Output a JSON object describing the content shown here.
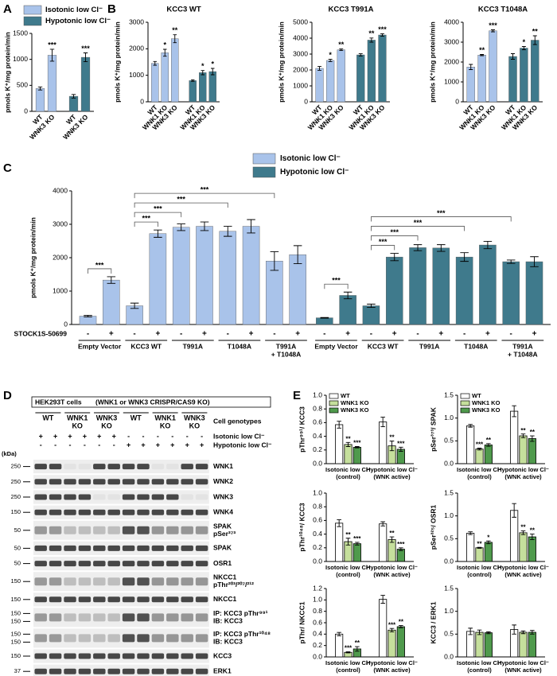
{
  "chart_data": [
    {
      "type": "bar",
      "panel": "A",
      "y_label": "pmols K⁺/mg protein/min",
      "categories": [
        "WT",
        "WNK3 KO"
      ],
      "groups": [
        {
          "name": "Isotonic low Cl⁻",
          "color": "#a9c3ea",
          "values": [
            440,
            1080
          ],
          "errors": [
            30,
            115
          ],
          "stars": [
            null,
            "***"
          ]
        },
        {
          "name": "Hypotonic low Cl⁻",
          "color": "#3f7a8c",
          "values": [
            290,
            1040
          ],
          "errors": [
            35,
            85
          ],
          "stars": [
            null,
            "***"
          ]
        }
      ],
      "ylim": [
        0,
        1500
      ],
      "yticks": [
        0,
        500,
        1000,
        1500
      ],
      "legend": true
    },
    {
      "type": "bar",
      "panel": "B",
      "title": "KCC3 WT",
      "y_label": "pmols K⁺/mg protein/min",
      "categories": [
        "WT",
        "WNK1 KO",
        "WNK3 KO"
      ],
      "groups": [
        {
          "color": "#a9c3ea",
          "values": [
            1450,
            1850,
            2380
          ],
          "errors": [
            70,
            130,
            150
          ],
          "stars": [
            null,
            "*",
            "**"
          ]
        },
        {
          "color": "#3f7a8c",
          "values": [
            800,
            1100,
            1140
          ],
          "errors": [
            30,
            80,
            120
          ],
          "stars": [
            null,
            "*",
            "*"
          ]
        }
      ],
      "ylim": [
        0,
        3000
      ],
      "yticks": [
        0,
        1000,
        2000,
        3000
      ]
    },
    {
      "type": "bar",
      "title": "KCC3 T991A",
      "y_label": "pmols K⁺/mg protein/min",
      "categories": [
        "WT",
        "WNK1 KO",
        "WNK3 KO"
      ],
      "groups": [
        {
          "color": "#a9c3ea",
          "values": [
            2100,
            2600,
            3270
          ],
          "errors": [
            120,
            70,
            50
          ],
          "stars": [
            null,
            "*",
            "**"
          ]
        },
        {
          "color": "#3f7a8c",
          "values": [
            2950,
            3880,
            4200
          ],
          "errors": [
            70,
            130,
            80
          ],
          "stars": [
            null,
            "**",
            "***"
          ]
        }
      ],
      "ylim": [
        0,
        5000
      ],
      "yticks": [
        0,
        1000,
        2000,
        3000,
        4000,
        5000
      ]
    },
    {
      "type": "bar",
      "title": "KCC3 T1048A",
      "y_label": "pmols K⁺/mg protein/min",
      "categories": [
        "WT",
        "WNK1 KO",
        "WNK3 KO"
      ],
      "groups": [
        {
          "color": "#a9c3ea",
          "values": [
            1750,
            2350,
            3570
          ],
          "errors": [
            130,
            30,
            50
          ],
          "stars": [
            null,
            "**",
            "***"
          ]
        },
        {
          "color": "#3f7a8c",
          "values": [
            2280,
            2700,
            3100
          ],
          "errors": [
            140,
            80,
            220
          ],
          "stars": [
            null,
            "*",
            "**"
          ]
        }
      ],
      "ylim": [
        0,
        4000
      ],
      "yticks": [
        0,
        1000,
        2000,
        3000,
        4000
      ]
    },
    {
      "type": "bar",
      "panel": "C",
      "y_label": "pmols K⁺/mg protein/min",
      "x_label": "STOCK1S-50699",
      "categories": [
        "-",
        "+",
        "-",
        "+",
        "-",
        "+",
        "-",
        "+",
        "-",
        "+"
      ],
      "constructs": [
        [
          "Empty Vector"
        ],
        [
          "KCC3 WT"
        ],
        [
          "T991A"
        ],
        [
          "T1048A"
        ],
        [
          "T991A",
          "+ T1048A"
        ]
      ],
      "groups": [
        {
          "name": "Isotonic low Cl⁻",
          "color": "#a9c3ea",
          "values": [
            250,
            1330,
            560,
            2720,
            2910,
            2940,
            2790,
            2940,
            1900,
            2090
          ],
          "errors": [
            25,
            100,
            80,
            110,
            100,
            130,
            150,
            200,
            280,
            270
          ]
        },
        {
          "name": "Hypotonic low Cl⁻",
          "color": "#3f7a8c",
          "values": [
            200,
            870,
            560,
            2020,
            2300,
            2290,
            2020,
            2380,
            1880,
            1880
          ],
          "errors": [
            10,
            100,
            50,
            110,
            90,
            100,
            130,
            110,
            50,
            150
          ]
        }
      ],
      "brackets": [
        {
          "bars": [
            0,
            1
          ],
          "label": "***"
        },
        {
          "bars": [
            2,
            3
          ],
          "label": "***"
        },
        {
          "bars": [
            2,
            4
          ],
          "label": "***"
        },
        {
          "bars": [
            2,
            6
          ],
          "label": "***"
        },
        {
          "bars": [
            2,
            8
          ],
          "label": "***"
        },
        {
          "bars": [
            10,
            11
          ],
          "label": "***"
        },
        {
          "bars": [
            12,
            13
          ],
          "label": "***"
        },
        {
          "bars": [
            12,
            14
          ],
          "label": "***"
        },
        {
          "bars": [
            12,
            16
          ],
          "label": "***"
        },
        {
          "bars": [
            12,
            18
          ],
          "label": "***"
        }
      ],
      "ylim": [
        0,
        4000
      ],
      "yticks": [
        0,
        1000,
        2000,
        3000,
        4000
      ],
      "legend": true
    },
    {
      "type": "bar",
      "panel": "E",
      "y_label": "pThr⁹⁹¹/ KCC3",
      "categories": [
        "Isotonic low Cl⁻",
        "Hypotonic low Cl⁻"
      ],
      "sublabels": [
        "(control)",
        "(WNK active)"
      ],
      "series": [
        {
          "name": "WT",
          "color": "#ffffff",
          "values": [
            0.57,
            0.61
          ],
          "errors": [
            0.05,
            0.07
          ]
        },
        {
          "name": "WNK1 KO",
          "color": "#c5df9c",
          "values": [
            0.28,
            0.26
          ],
          "errors": [
            0.03,
            0.07
          ],
          "stars": [
            "**",
            "**"
          ]
        },
        {
          "name": "WNK3 KO",
          "color": "#4f9a4c",
          "values": [
            0.24,
            0.21
          ],
          "errors": [
            0.01,
            0.03
          ],
          "stars": [
            "***",
            "***"
          ]
        }
      ],
      "ylim": [
        0,
        1
      ],
      "yticks": [
        {
          "value": 0,
          "label": "0.0"
        },
        0.2,
        0.4,
        0.6,
        0.8,
        {
          "value": 1,
          "label": "1.0"
        }
      ],
      "legend": true
    },
    {
      "type": "bar",
      "y_label": "pSer³⁷³/ SPAK",
      "categories": [
        "Isotonic low Cl⁻",
        "Hypotonic low Cl⁻"
      ],
      "sublabels": [
        "(control)",
        "(WNK active)"
      ],
      "series": [
        {
          "name": "WT",
          "color": "#ffffff",
          "values": [
            0.83,
            1.15
          ],
          "errors": [
            0.03,
            0.12
          ]
        },
        {
          "name": "WNK1 KO",
          "color": "#c5df9c",
          "values": [
            0.32,
            0.61
          ],
          "errors": [
            0.02,
            0.04
          ],
          "stars": [
            "***",
            "**"
          ]
        },
        {
          "name": "WNK3 KO",
          "color": "#4f9a4c",
          "values": [
            0.41,
            0.55
          ],
          "errors": [
            0.03,
            0.06
          ],
          "stars": [
            "**",
            "**"
          ]
        }
      ],
      "ylim": [
        0,
        1.5
      ],
      "yticks": [
        {
          "value": 0,
          "label": "0.0"
        },
        0.5,
        {
          "value": 1,
          "label": "1.0"
        },
        1.5
      ],
      "legend": true
    },
    {
      "type": "bar",
      "y_label": "pThr¹⁰⁴⁸/ KCC3",
      "categories": [
        "Isotonic low Cl⁻",
        "Hypotonic low Cl⁻"
      ],
      "sublabels": [
        "(control)",
        "(WNK active)"
      ],
      "series": [
        {
          "color": "#ffffff",
          "values": [
            0.56,
            0.55
          ],
          "errors": [
            0.05,
            0.03
          ]
        },
        {
          "color": "#c5df9c",
          "values": [
            0.29,
            0.32
          ],
          "errors": [
            0.05,
            0.04
          ],
          "stars": [
            "**",
            "**"
          ]
        },
        {
          "color": "#4f9a4c",
          "values": [
            0.26,
            0.18
          ],
          "errors": [
            0.02,
            0.02
          ],
          "stars": [
            "***",
            "***"
          ]
        }
      ],
      "ylim": [
        0,
        1
      ],
      "yticks": [
        {
          "value": 0,
          "label": "0.0"
        },
        0.2,
        0.4,
        0.6,
        0.8,
        {
          "value": 1,
          "label": "1.0"
        }
      ]
    },
    {
      "type": "bar",
      "y_label": "pSer³²⁵/ OSR1",
      "categories": [
        "Isotonic low Cl⁻",
        "Hypotonic low Cl⁻"
      ],
      "sublabels": [
        "(control)",
        "(WNK active)"
      ],
      "series": [
        {
          "color": "#ffffff",
          "values": [
            0.62,
            1.12
          ],
          "errors": [
            0.03,
            0.15
          ]
        },
        {
          "color": "#c5df9c",
          "values": [
            0.3,
            0.63
          ],
          "errors": [
            0.01,
            0.04
          ],
          "stars": [
            "**",
            "**"
          ]
        },
        {
          "color": "#4f9a4c",
          "values": [
            0.42,
            0.54
          ],
          "errors": [
            0.03,
            0.06
          ],
          "stars": [
            "*",
            "**"
          ]
        }
      ],
      "ylim": [
        0,
        1.5
      ],
      "yticks": [
        {
          "value": 0,
          "label": "0.0"
        },
        0.5,
        {
          "value": 1,
          "label": "1.0"
        },
        1.5
      ]
    },
    {
      "type": "bar",
      "y_label": "pThr/ NKCC1",
      "categories": [
        "Isotonic low Cl⁻",
        "Hypotonic low Cl⁻"
      ],
      "sublabels": [
        "(control)",
        "(WNK active)"
      ],
      "series": [
        {
          "color": "#ffffff",
          "values": [
            0.4,
            1.01
          ],
          "errors": [
            0.03,
            0.07
          ]
        },
        {
          "color": "#c5df9c",
          "values": [
            0.08,
            0.47
          ],
          "errors": [
            0.01,
            0.03
          ],
          "stars": [
            "***",
            "***"
          ]
        },
        {
          "color": "#4f9a4c",
          "values": [
            0.14,
            0.53
          ],
          "errors": [
            0.04,
            0.02
          ],
          "stars": [
            "**",
            "**"
          ]
        }
      ],
      "ylim": [
        0,
        1.2
      ],
      "yticks": [
        {
          "value": 0,
          "label": "0.0"
        },
        0.2,
        0.4,
        0.6,
        0.8,
        {
          "value": 1,
          "label": "1.0"
        },
        1.2
      ]
    },
    {
      "type": "bar",
      "y_label": "KCC3 / ERK1",
      "categories": [
        "Isotonic low Cl⁻",
        "Hypotonic low Cl⁻"
      ],
      "sublabels": [
        "(control)",
        "(WNK active)"
      ],
      "series": [
        {
          "color": "#ffffff",
          "values": [
            0.56,
            0.6
          ],
          "errors": [
            0.07,
            0.1
          ]
        },
        {
          "color": "#c5df9c",
          "values": [
            0.54,
            0.54
          ],
          "errors": [
            0.05,
            0.03
          ]
        },
        {
          "color": "#4f9a4c",
          "values": [
            0.53,
            0.54
          ],
          "errors": [
            0.02,
            0.04
          ]
        }
      ],
      "ylim": [
        0,
        1.5
      ],
      "yticks": [
        {
          "value": 0,
          "label": "0.0"
        },
        0.5,
        {
          "value": 1,
          "label": "1.0"
        },
        1.5
      ]
    }
  ],
  "blot": {
    "panel": "D",
    "header": [
      "HEK293T cells",
      "(WNK1 or WNK3 CRISPR/CAS9 KO)"
    ],
    "genotypes": [
      [
        "WT"
      ],
      [
        "WNK1",
        "KO"
      ],
      [
        "WNK3",
        "KO"
      ],
      [
        "WT"
      ],
      [
        "WNK1",
        "KO"
      ],
      [
        "WNK3",
        "KO"
      ]
    ],
    "genotype_label": "Cell genotypes",
    "conditions": [
      {
        "name": "Isotonic low Cl⁻",
        "signs": [
          "+",
          "+",
          "+",
          "+",
          "+",
          "+",
          "-",
          "-",
          "-",
          "-",
          "-",
          "-"
        ]
      },
      {
        "name": "Hypotonic low Cl⁻",
        "signs": [
          "-",
          "-",
          "-",
          "-",
          "-",
          "-",
          "+",
          "+",
          "+",
          "+",
          "+",
          "+"
        ]
      }
    ],
    "unit": "(kDa)",
    "rows": [
      {
        "label": [
          "WNK1"
        ],
        "markers": [
          250
        ]
      },
      {
        "label": [
          "WNK2"
        ],
        "markers": [
          250
        ]
      },
      {
        "label": [
          "WNK3"
        ],
        "markers": [
          250
        ]
      },
      {
        "label": [
          "WNK4"
        ],
        "markers": [
          150
        ]
      },
      {
        "label": [
          "SPAK",
          "pSer³⁷³"
        ],
        "markers": [
          50
        ]
      },
      {
        "label": [
          "SPAK"
        ],
        "markers": [
          50
        ]
      },
      {
        "label": [
          "OSR1"
        ],
        "markers": [
          50
        ]
      },
      {
        "label": [
          "NKCC1",
          "pThr²⁰³/²⁰⁷/²¹²"
        ],
        "markers": [
          150
        ]
      },
      {
        "label": [
          "NKCC1"
        ],
        "markers": [
          150
        ]
      },
      {
        "label": [
          "IP: KCC3 pThr⁹⁹¹",
          "IB: KCC3"
        ],
        "markers": [
          150,
          150
        ]
      },
      {
        "label": [
          "IP: KCC3 pThr¹⁰⁴⁸",
          "IB: KCC3"
        ],
        "markers": [
          150,
          150
        ]
      },
      {
        "label": [
          "KCC3"
        ],
        "markers": [
          150
        ]
      },
      {
        "label": [
          "ERK1"
        ],
        "markers": [
          37
        ]
      }
    ]
  }
}
